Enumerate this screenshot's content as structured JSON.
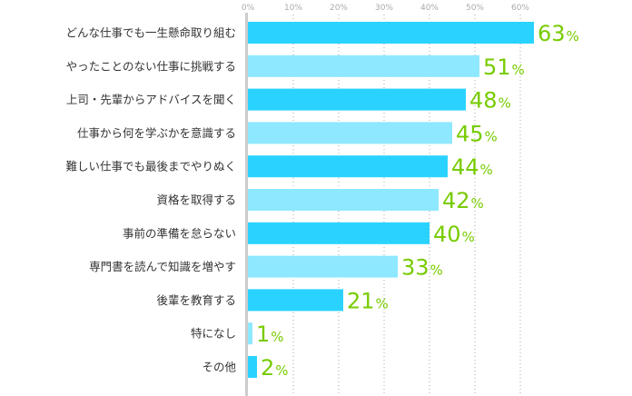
{
  "chart_data": {
    "type": "bar",
    "orientation": "horizontal",
    "title": "",
    "xlabel": "",
    "ylabel": "",
    "xlim": [
      0,
      60
    ],
    "x_ticks": [
      "0%",
      "10%",
      "20%",
      "30%",
      "40%",
      "50%",
      "60%"
    ],
    "tick_values": [
      0,
      10,
      20,
      30,
      40,
      50,
      60
    ],
    "grid": true,
    "unit": "%",
    "categories": [
      "どんな仕事でも一生懸命取り組む",
      "やったことのない仕事に挑戦する",
      "上司・先輩からアドバイスを聞く",
      "仕事から何を学ぶかを意識する",
      "難しい仕事でも最後までやりぬく",
      "資格を取得する",
      "事前の準備を怠らない",
      "専門書を読んで知識を増やす",
      "後輩を教育する",
      "特になし",
      "その他"
    ],
    "values": [
      63,
      51,
      48,
      45,
      44,
      42,
      40,
      33,
      21,
      1,
      2
    ],
    "colors": {
      "dark": "#2ad3ff",
      "light": "#8ee8ff",
      "label": "#77cc00",
      "axis": "#cccccc",
      "grid": "#aaaaaa"
    }
  }
}
